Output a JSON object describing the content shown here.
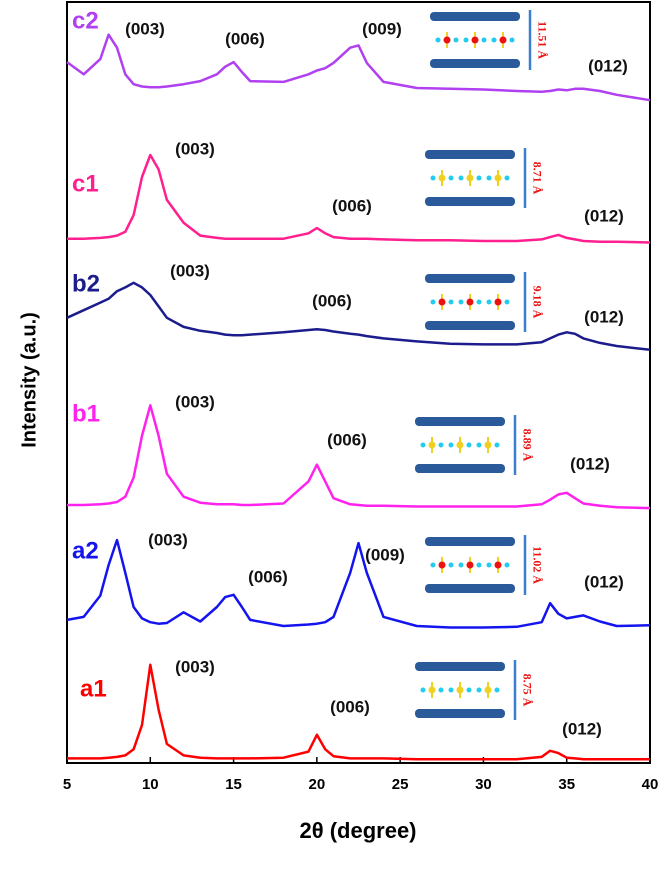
{
  "chart_data": {
    "type": "line",
    "x_label": "2θ (degree)",
    "y_label": "Intensity (a.u.)",
    "x": [
      5,
      6,
      7,
      7.5,
      8,
      8.5,
      9,
      9.5,
      10,
      10.5,
      11,
      12,
      13,
      14,
      14.5,
      15,
      15.5,
      16,
      18,
      19.5,
      20,
      20.5,
      21,
      22,
      22.5,
      23,
      24,
      26,
      28,
      30,
      32,
      33.5,
      34,
      34.5,
      35,
      35.5,
      36,
      37,
      38,
      40
    ],
    "xlim": [
      5,
      40
    ],
    "xticks": [
      5,
      10,
      15,
      20,
      25,
      30,
      35,
      40
    ],
    "ylim": [
      0,
      100
    ],
    "series": [
      {
        "name": "a1",
        "color": "#ff0000",
        "peaks": [
          "(003)",
          "(006)",
          "(012)"
        ],
        "d_spacing": "8.75 Å",
        "values": [
          0.6,
          0.6,
          0.6,
          0.7,
          0.8,
          1.0,
          1.8,
          5,
          12.9,
          7,
          2.5,
          1.0,
          0.7,
          0.6,
          0.6,
          0.6,
          0.6,
          0.6,
          0.7,
          1.5,
          3.7,
          1.8,
          0.9,
          0.6,
          0.6,
          0.6,
          0.6,
          0.5,
          0.5,
          0.5,
          0.5,
          0.8,
          1.6,
          1.3,
          0.7,
          0.6,
          0.5,
          0.5,
          0.5,
          0.5
        ]
      },
      {
        "name": "a2",
        "color": "#1414ee",
        "peaks": [
          "(003)",
          "(006)",
          "(009)",
          "(012)"
        ],
        "d_spacing": "11.02 Å",
        "values": [
          18.8,
          19.2,
          22,
          26,
          29.3,
          25,
          20.5,
          19,
          18.5,
          18.3,
          18.4,
          19.8,
          18.6,
          20.5,
          21.8,
          22.1,
          20.5,
          18.8,
          18.0,
          18.2,
          18.3,
          18.5,
          19.2,
          25,
          28.9,
          25,
          19.2,
          18,
          17.8,
          17.8,
          17.9,
          18.5,
          21.0,
          19.6,
          19.0,
          19.2,
          19.4,
          18.6,
          18.0,
          18.1
        ]
      },
      {
        "name": "b1",
        "color": "#ff22ee",
        "peaks": [
          "(003)",
          "(006)",
          "(012)"
        ],
        "d_spacing": "8.89 Å",
        "values": [
          33.9,
          33.9,
          34,
          34.1,
          34.3,
          35,
          37.5,
          43,
          47.0,
          43,
          38,
          35,
          34.2,
          34,
          34,
          34,
          33.9,
          33.9,
          34.1,
          37,
          39.2,
          37,
          34.8,
          34,
          33.9,
          33.8,
          33.8,
          33.7,
          33.7,
          33.7,
          33.7,
          34,
          34.6,
          35.3,
          35.5,
          34.8,
          34.1,
          33.8,
          33.6,
          33.5
        ]
      },
      {
        "name": "b2",
        "color": "#1c1c8c",
        "peaks": [
          "(003)",
          "(006)",
          "(012)"
        ],
        "d_spacing": "9.18 Å",
        "values": [
          58.5,
          59.5,
          60.5,
          61,
          62,
          62.5,
          63.1,
          62.5,
          61.5,
          60,
          58.5,
          57.3,
          56.8,
          56.5,
          56.3,
          56.2,
          56.2,
          56.3,
          56.6,
          56.9,
          57,
          56.9,
          56.7,
          56.4,
          56.3,
          56.1,
          55.8,
          55.4,
          55.1,
          55,
          55,
          55.3,
          55.8,
          56.3,
          56.6,
          56.4,
          55.8,
          55.2,
          54.8,
          54.3
        ]
      },
      {
        "name": "c1",
        "color": "#ff1f8f",
        "peaks": [
          "(003)",
          "(006)",
          "(012)"
        ],
        "d_spacing": "8.71 Å",
        "values": [
          68.9,
          68.9,
          69,
          69.1,
          69.3,
          69.8,
          72,
          77,
          79.9,
          78,
          74,
          71,
          69.3,
          69,
          68.9,
          68.9,
          68.9,
          68.9,
          68.9,
          69.6,
          70.3,
          69.6,
          69.1,
          68.9,
          68.9,
          68.9,
          68.8,
          68.7,
          68.7,
          68.6,
          68.6,
          68.8,
          69.1,
          69.4,
          69.0,
          68.8,
          68.6,
          68.5,
          68.5,
          68.4
        ]
      },
      {
        "name": "c2",
        "color": "#b040f0",
        "peaks": [
          "(003)",
          "(006)",
          "(009)",
          "(012)"
        ],
        "d_spacing": "11.51 Å",
        "values": [
          92.1,
          90.5,
          92.5,
          95.7,
          94,
          90.5,
          89.2,
          88.9,
          88.8,
          88.8,
          88.9,
          89.2,
          89.6,
          90.5,
          91.5,
          92.1,
          90.8,
          89.6,
          89.5,
          90.5,
          91,
          91.3,
          92,
          94,
          94.3,
          92,
          89.5,
          88.7,
          88.6,
          88.5,
          88.3,
          88.2,
          88.3,
          88.5,
          88.4,
          88.6,
          88.6,
          88.3,
          87.8,
          87.1
        ]
      }
    ]
  }
}
